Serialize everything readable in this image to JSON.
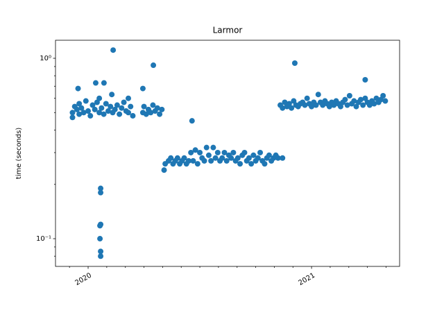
{
  "chart_data": {
    "type": "scatter",
    "title": "Larmor",
    "y_label": "time (seconds)",
    "color": "#1f77b4",
    "y_scale": "log",
    "xlim": [
      2019.854,
      2021.394
    ],
    "xticks": [
      2020,
      2021
    ],
    "xminorticks": [
      2019.9167,
      2020.0833,
      2020.1667,
      2020.25,
      2020.3333,
      2020.4167,
      2020.5,
      2020.5833,
      2020.6667,
      2020.75,
      2020.8333,
      2020.9167,
      2021.0833,
      2021.1667,
      2021.25,
      2021.3333
    ],
    "ylim": [
      0.0702,
      1.259
    ],
    "yticks": [
      {
        "value": 0.1,
        "label": "10⁻¹"
      },
      {
        "value": 1,
        "label": "10⁰"
      }
    ],
    "yminorticks": [
      0.08,
      0.09,
      0.2,
      0.3,
      0.4,
      0.5,
      0.6,
      0.7,
      0.8,
      0.9
    ],
    "x": [
      2019.93,
      2019.93,
      2019.94,
      2019.95,
      2019.96,
      2019.96,
      2019.97,
      2019.98,
      2019.99,
      2020.0,
      2020.01,
      2020.02,
      2020.03,
      2020.04,
      2020.05,
      2020.05,
      2020.06,
      2020.07,
      2020.08,
      2020.09,
      2020.1,
      2020.11,
      2020.12,
      2020.13,
      2020.14,
      2020.15,
      2020.16,
      2020.17,
      2020.18,
      2020.19,
      2020.2,
      2019.955,
      2020.034,
      2020.071,
      2020.112,
      2020.106,
      2020.056,
      2020.056,
      2020.056,
      2020.053,
      2020.053,
      2020.056,
      2020.056,
      2020.18,
      2020.245,
      2020.25,
      2020.26,
      2020.27,
      2020.28,
      2020.29,
      2020.3,
      2020.31,
      2020.32,
      2020.33,
      2020.245,
      2020.292,
      2020.34,
      2020.345,
      2020.36,
      2020.37,
      2020.38,
      2020.39,
      2020.4,
      2020.41,
      2020.42,
      2020.43,
      2020.44,
      2020.45,
      2020.46,
      2020.465,
      2020.47,
      2020.48,
      2020.49,
      2020.5,
      2020.51,
      2020.52,
      2020.53,
      2020.54,
      2020.55,
      2020.56,
      2020.57,
      2020.58,
      2020.59,
      2020.6,
      2020.61,
      2020.62,
      2020.63,
      2020.64,
      2020.65,
      2020.66,
      2020.67,
      2020.68,
      2020.69,
      2020.7,
      2020.71,
      2020.72,
      2020.73,
      2020.74,
      2020.75,
      2020.76,
      2020.77,
      2020.78,
      2020.79,
      2020.8,
      2020.81,
      2020.82,
      2020.83,
      2020.84,
      2020.85,
      2020.87,
      2020.86,
      2020.87,
      2020.88,
      2020.89,
      2020.9,
      2020.91,
      2020.92,
      2020.93,
      2020.94,
      2020.95,
      2020.96,
      2020.97,
      2020.98,
      2020.99,
      2021.0,
      2021.01,
      2021.02,
      2021.03,
      2021.04,
      2021.05,
      2021.06,
      2021.07,
      2021.08,
      2021.09,
      2021.1,
      2021.11,
      2021.12,
      2021.13,
      2021.14,
      2021.15,
      2021.16,
      2021.17,
      2021.18,
      2021.19,
      2021.2,
      2021.21,
      2021.22,
      2021.23,
      2021.24,
      2021.25,
      2021.26,
      2021.27,
      2021.28,
      2021.29,
      2021.3,
      2021.31,
      2021.32,
      2021.33,
      2020.925,
      2021.24
    ],
    "values": [
      0.5,
      0.47,
      0.54,
      0.52,
      0.49,
      0.56,
      0.53,
      0.5,
      0.58,
      0.51,
      0.48,
      0.55,
      0.52,
      0.57,
      0.5,
      0.6,
      0.53,
      0.49,
      0.56,
      0.51,
      0.54,
      0.5,
      0.52,
      0.55,
      0.49,
      0.53,
      0.57,
      0.51,
      0.5,
      0.54,
      0.48,
      0.68,
      0.73,
      0.73,
      1.11,
      0.63,
      0.19,
      0.18,
      0.12,
      0.118,
      0.1,
      0.085,
      0.08,
      0.6,
      0.5,
      0.54,
      0.49,
      0.52,
      0.5,
      0.55,
      0.51,
      0.53,
      0.49,
      0.52,
      0.68,
      0.915,
      0.24,
      0.26,
      0.27,
      0.28,
      0.26,
      0.27,
      0.28,
      0.26,
      0.27,
      0.28,
      0.26,
      0.27,
      0.3,
      0.45,
      0.27,
      0.31,
      0.26,
      0.3,
      0.28,
      0.27,
      0.32,
      0.29,
      0.27,
      0.32,
      0.28,
      0.3,
      0.27,
      0.28,
      0.3,
      0.27,
      0.29,
      0.28,
      0.3,
      0.27,
      0.28,
      0.26,
      0.29,
      0.3,
      0.27,
      0.28,
      0.26,
      0.29,
      0.27,
      0.28,
      0.3,
      0.27,
      0.26,
      0.28,
      0.29,
      0.27,
      0.28,
      0.29,
      0.28,
      0.28,
      0.55,
      0.53,
      0.57,
      0.54,
      0.56,
      0.53,
      0.58,
      0.55,
      0.54,
      0.56,
      0.57,
      0.55,
      0.6,
      0.56,
      0.54,
      0.57,
      0.55,
      0.63,
      0.57,
      0.55,
      0.58,
      0.56,
      0.54,
      0.57,
      0.55,
      0.58,
      0.56,
      0.54,
      0.57,
      0.59,
      0.55,
      0.62,
      0.56,
      0.58,
      0.54,
      0.57,
      0.59,
      0.55,
      0.6,
      0.57,
      0.55,
      0.58,
      0.56,
      0.6,
      0.57,
      0.59,
      0.62,
      0.58,
      0.94,
      0.76
    ]
  }
}
